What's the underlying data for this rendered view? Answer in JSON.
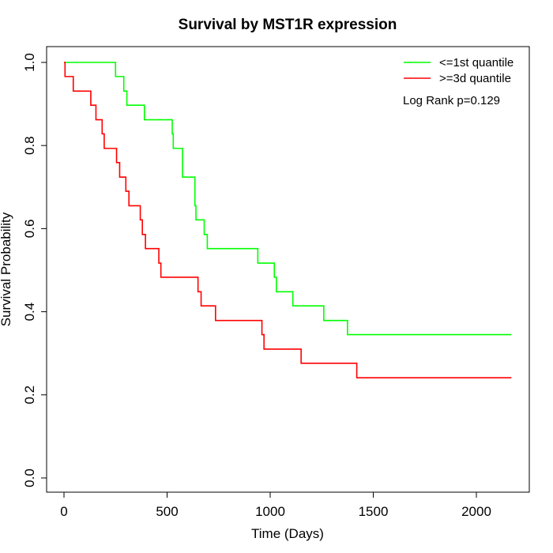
{
  "chart_data": {
    "type": "line",
    "step": true,
    "title": "Survival by MST1R expression",
    "xlabel": "Time (Days)",
    "ylabel": "Survival Probability",
    "xlim": [
      0,
      2180
    ],
    "ylim": [
      0,
      1
    ],
    "x_ticks": [
      0,
      500,
      1000,
      1500,
      2000
    ],
    "y_ticks": [
      0.0,
      0.2,
      0.4,
      0.6,
      0.8,
      1.0
    ],
    "x_tick_labels": [
      "0",
      "500",
      "1000",
      "1500",
      "2000"
    ],
    "y_tick_labels": [
      "0.0",
      "0.2",
      "0.4",
      "0.6",
      "0.8",
      "1.0"
    ],
    "grid": false,
    "legend_position": "top-right",
    "annotation": "Log Rank p=0.129",
    "series": [
      {
        "name": "<=1st quantile",
        "color": "#00ff00",
        "x": [
          0,
          250,
          290,
          305,
          390,
          525,
          530,
          575,
          635,
          640,
          650,
          680,
          695,
          940,
          1020,
          1030,
          1110,
          1260,
          1375,
          2170
        ],
        "y": [
          1.0,
          0.966,
          0.931,
          0.897,
          0.862,
          0.828,
          0.793,
          0.724,
          0.655,
          0.621,
          0.621,
          0.586,
          0.552,
          0.517,
          0.483,
          0.448,
          0.414,
          0.379,
          0.345,
          0.345
        ]
      },
      {
        "name": ">=3d quantile",
        "color": "#ff0000",
        "x": [
          0,
          5,
          45,
          130,
          155,
          185,
          195,
          255,
          270,
          300,
          315,
          370,
          380,
          395,
          460,
          470,
          650,
          665,
          735,
          960,
          970,
          1150,
          1420,
          2170
        ],
        "y": [
          1.0,
          0.966,
          0.931,
          0.897,
          0.862,
          0.828,
          0.793,
          0.759,
          0.724,
          0.69,
          0.655,
          0.621,
          0.586,
          0.552,
          0.517,
          0.483,
          0.448,
          0.414,
          0.379,
          0.345,
          0.31,
          0.276,
          0.241,
          0.241
        ]
      }
    ]
  }
}
